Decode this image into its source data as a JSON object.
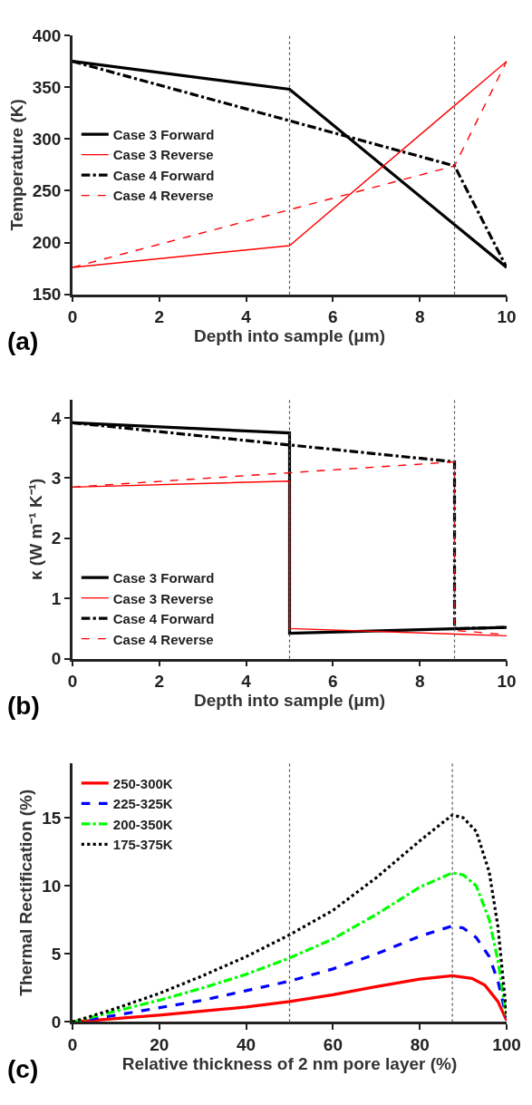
{
  "chart_data": [
    {
      "type": "line",
      "xlabel": "Depth into sample (μm)",
      "ylabel": "Temperature (K)",
      "xlim": [
        0,
        10
      ],
      "xticks": [
        0,
        2,
        4,
        6,
        8,
        10
      ],
      "ylim": [
        150,
        400
      ],
      "yticks": [
        150,
        200,
        250,
        300,
        350,
        400
      ],
      "legend": "left",
      "annotations": [
        "(a)"
      ],
      "ref_lines": [
        {
          "axis": "x",
          "value": 5,
          "color": "#555555",
          "line_style": "dotted"
        },
        {
          "axis": "x",
          "value": 8.8,
          "color": "#555555",
          "line_style": "dotted"
        }
      ],
      "series": [
        {
          "name": "Case 3 Forward",
          "color": "#000000",
          "line_style": "solid",
          "x": [
            0,
            5,
            10
          ],
          "values": [
            375,
            348,
            176
          ]
        },
        {
          "name": "Case 3 Reverse",
          "color": "#ff0000",
          "line_style": "solid",
          "x": [
            0,
            5,
            10
          ],
          "values": [
            176,
            197,
            375
          ]
        },
        {
          "name": "Case 4 Forward",
          "color": "#000000",
          "line_style": "dashdot",
          "x": [
            0,
            8.8,
            10
          ],
          "values": [
            375,
            274,
            176
          ]
        },
        {
          "name": "Case 4 Reverse",
          "color": "#ff0000",
          "line_style": "dashed",
          "x": [
            0,
            8.8,
            10
          ],
          "values": [
            176,
            274,
            375
          ]
        }
      ]
    },
    {
      "type": "line",
      "xlabel": "Depth into sample (μm)",
      "ylabel": "κ (W m⁻¹ K⁻¹)",
      "xlim": [
        0,
        10
      ],
      "xticks": [
        0,
        2,
        4,
        6,
        8,
        10
      ],
      "ylim": [
        0,
        4.3
      ],
      "yticks": [
        0,
        1,
        2,
        3,
        4
      ],
      "legend": "bottom left",
      "annotations": [
        "(b)"
      ],
      "ref_lines": [
        {
          "axis": "x",
          "value": 5,
          "color": "#555555",
          "line_style": "dotted"
        },
        {
          "axis": "x",
          "value": 8.8,
          "color": "#555555",
          "line_style": "dotted"
        }
      ],
      "series": [
        {
          "name": "Case 3 Forward",
          "color": "#000000",
          "line_style": "solid",
          "x": [
            0,
            5,
            5,
            10
          ],
          "values": [
            3.92,
            3.75,
            0.42,
            0.52
          ]
        },
        {
          "name": "Case 3 Reverse",
          "color": "#ff0000",
          "line_style": "solid",
          "x": [
            0,
            5,
            5,
            10
          ],
          "values": [
            2.85,
            2.95,
            0.5,
            0.38
          ]
        },
        {
          "name": "Case 4 Forward",
          "color": "#000000",
          "line_style": "dashdot",
          "x": [
            0,
            8.8,
            8.8,
            10
          ],
          "values": [
            3.92,
            3.27,
            0.5,
            0.52
          ]
        },
        {
          "name": "Case 4 Reverse",
          "color": "#ff0000",
          "line_style": "dashed",
          "x": [
            0,
            8.8,
            8.8,
            10
          ],
          "values": [
            2.85,
            3.27,
            0.47,
            0.4
          ]
        }
      ]
    },
    {
      "type": "line",
      "xlabel": "Relative thickness of 2 nm pore layer (%)",
      "ylabel": "Thermal Rectification (%)",
      "xlim": [
        0,
        100
      ],
      "xticks": [
        0,
        20,
        40,
        60,
        80,
        100
      ],
      "ylim": [
        0,
        19
      ],
      "yticks": [
        0,
        5,
        10,
        15
      ],
      "legend": "top left",
      "annotations": [
        "(c)"
      ],
      "ref_lines": [
        {
          "axis": "x",
          "value": 50,
          "color": "#555555",
          "line_style": "dotted"
        },
        {
          "axis": "x",
          "value": 87.5,
          "color": "#555555",
          "line_style": "dotted"
        }
      ],
      "series": [
        {
          "name": "250-300K",
          "color": "#ff0000",
          "line_style": "solid",
          "x": [
            0,
            10,
            20,
            30,
            40,
            50,
            60,
            70,
            80,
            87.5,
            92,
            95,
            98,
            100
          ],
          "values": [
            0,
            0.25,
            0.5,
            0.8,
            1.1,
            1.5,
            2.0,
            2.6,
            3.15,
            3.4,
            3.2,
            2.7,
            1.5,
            0.1
          ]
        },
        {
          "name": "225-325K",
          "color": "#0000ff",
          "line_style": "dashed",
          "x": [
            0,
            10,
            20,
            30,
            40,
            50,
            60,
            70,
            80,
            87.5,
            90,
            93,
            96,
            98,
            100
          ],
          "values": [
            0,
            0.5,
            1.05,
            1.6,
            2.3,
            3.0,
            3.9,
            5.0,
            6.3,
            7.05,
            6.9,
            6.2,
            4.8,
            3.0,
            0.3
          ]
        },
        {
          "name": "200-350K",
          "color": "#00ff00",
          "line_style": "dashdot",
          "x": [
            0,
            10,
            20,
            30,
            40,
            50,
            60,
            70,
            80,
            87.5,
            90,
            93,
            96,
            98,
            100
          ],
          "values": [
            0,
            0.8,
            1.6,
            2.5,
            3.5,
            4.7,
            6.1,
            7.9,
            9.9,
            10.95,
            10.8,
            10.0,
            7.5,
            4.5,
            0.3
          ]
        },
        {
          "name": "175-375K",
          "color": "#000000",
          "line_style": "dotted",
          "x": [
            0,
            10,
            20,
            30,
            40,
            50,
            60,
            70,
            80,
            87.5,
            90,
            93,
            96,
            98,
            100
          ],
          "values": [
            0,
            1.0,
            2.1,
            3.4,
            4.8,
            6.4,
            8.2,
            10.6,
            13.3,
            15.2,
            15.0,
            14.0,
            11.0,
            7.0,
            0.5
          ]
        }
      ]
    }
  ]
}
